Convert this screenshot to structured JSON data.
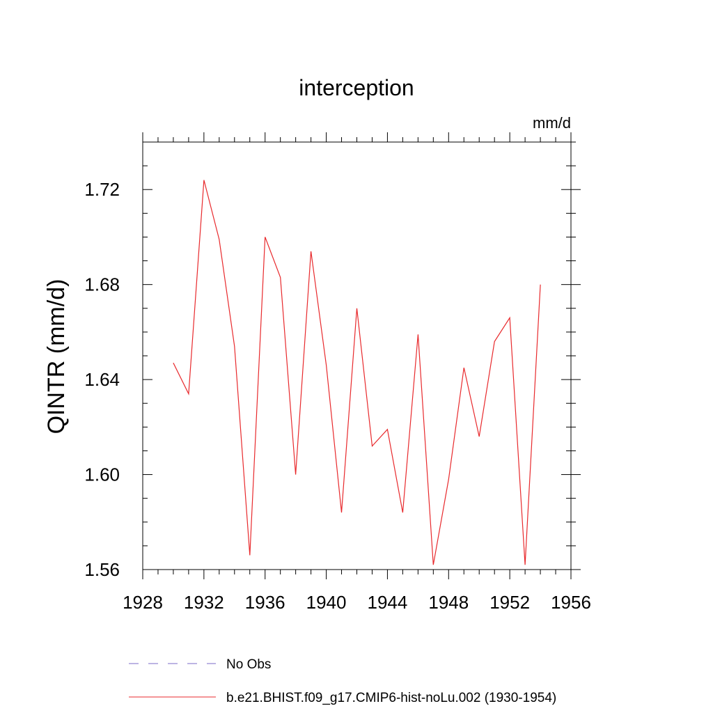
{
  "chart_data": {
    "type": "line",
    "title": "interception",
    "units_label": "mm/d",
    "xlabel": "",
    "ylabel": "QINTR  (mm/d)",
    "xlim": [
      1928,
      1956
    ],
    "ylim": [
      1.56,
      1.74
    ],
    "x_ticks": [
      1928,
      1932,
      1936,
      1940,
      1944,
      1948,
      1952,
      1956
    ],
    "x_tick_labels": [
      "1928",
      "1932",
      "1936",
      "1940",
      "1944",
      "1948",
      "1952",
      "1956"
    ],
    "y_ticks": [
      1.56,
      1.6,
      1.64,
      1.68,
      1.72
    ],
    "y_tick_labels": [
      "1.56",
      "1.60",
      "1.64",
      "1.68",
      "1.72"
    ],
    "grid": false,
    "legend_position": "bottom",
    "legend": [
      {
        "label": "No Obs",
        "color": "#7b68c8",
        "style": "dashed"
      },
      {
        "label": "b.e21.BHIST.f09_g17.CMIP6-hist-noLu.002 (1930-1954)",
        "color": "#e8292c",
        "style": "solid"
      }
    ],
    "series": [
      {
        "color": "#e8292c",
        "x": [
          1930,
          1931,
          1932,
          1933,
          1934,
          1935,
          1936,
          1937,
          1938,
          1939,
          1940,
          1941,
          1942,
          1943,
          1944,
          1945,
          1946,
          1947,
          1948,
          1949,
          1950,
          1951,
          1952,
          1953,
          1954
        ],
        "values": [
          1.647,
          1.634,
          1.724,
          1.699,
          1.654,
          1.566,
          1.7,
          1.683,
          1.6,
          1.694,
          1.646,
          1.584,
          1.67,
          1.612,
          1.619,
          1.584,
          1.659,
          1.562,
          1.598,
          1.645,
          1.616,
          1.656,
          1.666,
          1.562,
          1.68
        ]
      }
    ]
  }
}
